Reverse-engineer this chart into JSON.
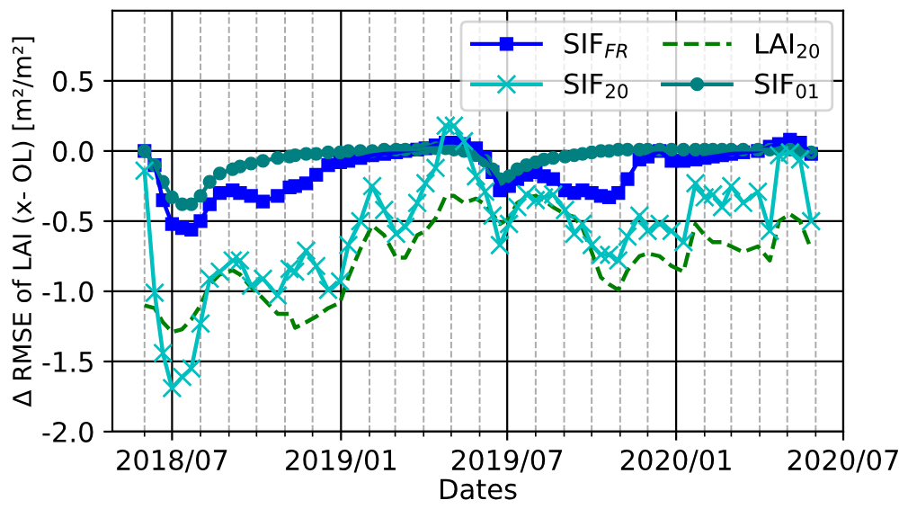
{
  "chart_data": {
    "type": "line",
    "xlabel": "Dates",
    "ylabel": "Δ RMSE of LAI (x- OL) [m²/m²]",
    "x": [
      "2018-06-01",
      "2018-06-12",
      "2018-06-21",
      "2018-07-01",
      "2018-07-12",
      "2018-07-22",
      "2018-08-01",
      "2018-08-11",
      "2018-08-22",
      "2018-09-05",
      "2018-09-13",
      "2018-09-25",
      "2018-10-08",
      "2018-10-24",
      "2018-11-06",
      "2018-11-12",
      "2018-11-24",
      "2018-12-05",
      "2018-12-18",
      "2018-12-31",
      "2019-01-09",
      "2019-01-22",
      "2019-02-04",
      "2019-02-17",
      "2019-03-02",
      "2019-03-12",
      "2019-03-25",
      "2019-04-03",
      "2019-04-14",
      "2019-04-25",
      "2019-05-04",
      "2019-05-15",
      "2019-05-28",
      "2019-06-07",
      "2019-06-15",
      "2019-06-23",
      "2019-07-03",
      "2019-07-12",
      "2019-07-22",
      "2019-08-01",
      "2019-08-10",
      "2019-08-20",
      "2019-09-02",
      "2019-09-12",
      "2019-09-21",
      "2019-10-01",
      "2019-10-11",
      "2019-10-20",
      "2019-10-30",
      "2019-11-09",
      "2019-11-22",
      "2019-12-01",
      "2019-12-14",
      "2019-12-27",
      "2020-01-09",
      "2020-01-22",
      "2020-02-01",
      "2020-02-10",
      "2020-02-20",
      "2020-03-01",
      "2020-03-14",
      "2020-03-30",
      "2020-04-12",
      "2020-04-22",
      "2020-05-04",
      "2020-05-15",
      "2020-05-27"
    ],
    "series": [
      {
        "name": "SIF$_{FR}$",
        "color": "#0000ff",
        "marker": "square",
        "line_style": "solid",
        "values": [
          0.0,
          -0.1,
          -0.35,
          -0.52,
          -0.55,
          -0.56,
          -0.5,
          -0.38,
          -0.3,
          -0.28,
          -0.3,
          -0.32,
          -0.36,
          -0.32,
          -0.26,
          -0.25,
          -0.23,
          -0.17,
          -0.1,
          -0.08,
          -0.07,
          -0.05,
          -0.03,
          -0.02,
          -0.01,
          0.0,
          0.01,
          0.02,
          0.04,
          0.06,
          0.06,
          0.05,
          0.02,
          -0.05,
          -0.15,
          -0.28,
          -0.25,
          -0.2,
          -0.17,
          -0.15,
          -0.18,
          -0.2,
          -0.28,
          -0.3,
          -0.28,
          -0.3,
          -0.32,
          -0.33,
          -0.3,
          -0.2,
          -0.06,
          -0.04,
          0.0,
          -0.07,
          -0.07,
          -0.06,
          -0.05,
          -0.04,
          -0.03,
          -0.02,
          -0.01,
          0.0,
          0.03,
          0.05,
          0.08,
          0.06,
          -0.02
        ]
      },
      {
        "name": "SIF$_{20}$",
        "color": "#00bfbf",
        "marker": "cross",
        "line_style": "solid",
        "values": [
          -0.14,
          -1.01,
          -1.44,
          -1.69,
          -1.61,
          -1.55,
          -1.23,
          -0.91,
          -0.86,
          -0.78,
          -0.78,
          -0.96,
          -0.91,
          -1.03,
          -0.84,
          -0.86,
          -0.71,
          -0.82,
          -0.99,
          -0.93,
          -0.67,
          -0.5,
          -0.25,
          -0.42,
          -0.59,
          -0.54,
          -0.37,
          -0.23,
          -0.12,
          0.18,
          0.18,
          0.07,
          -0.18,
          -0.29,
          -0.46,
          -0.67,
          -0.52,
          -0.4,
          -0.31,
          -0.35,
          -0.33,
          -0.31,
          -0.42,
          -0.59,
          -0.52,
          -0.67,
          -0.74,
          -0.74,
          -0.78,
          -0.61,
          -0.46,
          -0.57,
          -0.52,
          -0.57,
          -0.65,
          -0.23,
          -0.33,
          -0.31,
          -0.4,
          -0.25,
          -0.37,
          -0.29,
          -0.57,
          -0.03,
          -0.01,
          -0.06,
          -0.5
        ]
      },
      {
        "name": "LAI$_{20}$",
        "color": "#008000",
        "marker": "none",
        "line_style": "dashed",
        "values": [
          -1.1,
          -1.12,
          -1.22,
          -1.29,
          -1.27,
          -1.2,
          -1.1,
          -0.95,
          -0.88,
          -0.85,
          -0.88,
          -0.97,
          -1.05,
          -1.16,
          -1.16,
          -1.26,
          -1.22,
          -1.18,
          -1.12,
          -1.08,
          -0.9,
          -0.7,
          -0.53,
          -0.6,
          -0.76,
          -0.76,
          -0.6,
          -0.57,
          -0.48,
          -0.32,
          -0.32,
          -0.37,
          -0.34,
          -0.38,
          -0.45,
          -0.52,
          -0.48,
          -0.37,
          -0.33,
          -0.32,
          -0.35,
          -0.4,
          -0.45,
          -0.47,
          -0.55,
          -0.72,
          -0.9,
          -0.95,
          -0.99,
          -0.85,
          -0.75,
          -0.73,
          -0.75,
          -0.82,
          -0.86,
          -0.52,
          -0.6,
          -0.65,
          -0.65,
          -0.68,
          -0.72,
          -0.68,
          -0.78,
          -0.5,
          -0.45,
          -0.5,
          -0.7
        ]
      },
      {
        "name": "SIF$_{01}$",
        "color": "#008080",
        "marker": "circle",
        "line_style": "solid",
        "values": [
          0.0,
          -0.1,
          -0.22,
          -0.33,
          -0.38,
          -0.38,
          -0.32,
          -0.22,
          -0.16,
          -0.13,
          -0.11,
          -0.09,
          -0.07,
          -0.05,
          -0.04,
          -0.03,
          -0.02,
          -0.02,
          -0.01,
          -0.01,
          0.0,
          0.0,
          0.0,
          0.01,
          0.01,
          0.01,
          0.01,
          0.02,
          0.02,
          0.02,
          0.01,
          0.0,
          -0.03,
          -0.07,
          -0.13,
          -0.2,
          -0.18,
          -0.13,
          -0.1,
          -0.08,
          -0.06,
          -0.05,
          -0.04,
          -0.03,
          -0.02,
          -0.01,
          0.0,
          0.0,
          0.01,
          0.01,
          0.01,
          0.01,
          0.01,
          0.01,
          0.01,
          0.01,
          0.01,
          0.01,
          0.01,
          0.01,
          0.01,
          0.01,
          0.01,
          0.01,
          0.01,
          0.0,
          -0.01
        ]
      }
    ],
    "xlim": [
      "2018-04-27",
      "2020-07-01"
    ],
    "xticks": [
      {
        "value": "2018-06-01",
        "label": null
      },
      {
        "value": "2018-07-01",
        "label": "2018/07"
      },
      {
        "value": "2018-08-01",
        "label": null
      },
      {
        "value": "2018-09-01",
        "label": null
      },
      {
        "value": "2018-10-01",
        "label": null
      },
      {
        "value": "2018-11-01",
        "label": null
      },
      {
        "value": "2018-12-01",
        "label": null
      },
      {
        "value": "2019-01-01",
        "label": "2019/01"
      },
      {
        "value": "2019-02-01",
        "label": null
      },
      {
        "value": "2019-03-01",
        "label": null
      },
      {
        "value": "2019-04-01",
        "label": null
      },
      {
        "value": "2019-05-01",
        "label": null
      },
      {
        "value": "2019-06-01",
        "label": null
      },
      {
        "value": "2019-07-01",
        "label": "2019/07"
      },
      {
        "value": "2019-08-01",
        "label": null
      },
      {
        "value": "2019-09-01",
        "label": null
      },
      {
        "value": "2019-10-01",
        "label": null
      },
      {
        "value": "2019-11-01",
        "label": null
      },
      {
        "value": "2019-12-01",
        "label": null
      },
      {
        "value": "2020-01-01",
        "label": "2020/01"
      },
      {
        "value": "2020-02-01",
        "label": null
      },
      {
        "value": "2020-03-01",
        "label": null
      },
      {
        "value": "2020-04-01",
        "label": null
      },
      {
        "value": "2020-05-01",
        "label": null
      },
      {
        "value": "2020-06-01",
        "label": null
      },
      {
        "value": "2020-07-01",
        "label": "2020/07"
      }
    ],
    "ylim": [
      -2,
      1
    ],
    "yticks": [
      {
        "value": -2,
        "label": "-2.0"
      },
      {
        "value": -1.5,
        "label": "-1.5"
      },
      {
        "value": -1,
        "label": "-1.0"
      },
      {
        "value": -0.5,
        "label": "-0.5"
      },
      {
        "value": 0,
        "label": "0.0"
      },
      {
        "value": 0.5,
        "label": "0.5"
      }
    ],
    "grid": true,
    "legend": "top right"
  }
}
